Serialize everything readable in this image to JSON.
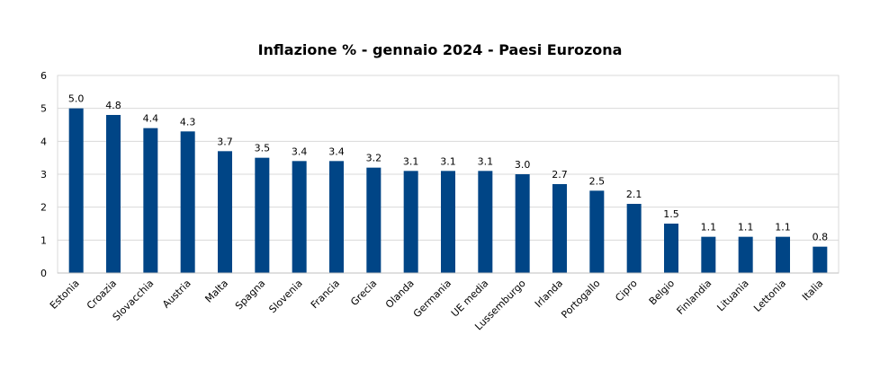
{
  "chart_data": {
    "type": "bar",
    "title": "Inflazione % - gennaio 2024 - Paesi Eurozona",
    "xlabel": "",
    "ylabel": "",
    "ylim": [
      0,
      6
    ],
    "yticks": [
      0,
      1,
      2,
      3,
      4,
      5,
      6
    ],
    "grid": true,
    "legend": "none",
    "bar_color": "#004586",
    "grid_color": "#d9d9d9",
    "categories": [
      "Estonia",
      "Croazia",
      "Slovacchia",
      "Austria",
      "Malta",
      "Spagna",
      "Slovenia",
      "Francia",
      "Grecia",
      "Olanda",
      "Germania",
      "UE media",
      "Lussemburgo",
      "Irlanda",
      "Portogallo",
      "Cipro",
      "Belgio",
      "Finlandia",
      "Lituania",
      "Lettonia",
      "Italia"
    ],
    "values": [
      5.0,
      4.8,
      4.4,
      4.3,
      3.7,
      3.5,
      3.4,
      3.4,
      3.2,
      3.1,
      3.1,
      3.1,
      3.0,
      2.7,
      2.5,
      2.1,
      1.5,
      1.1,
      1.1,
      1.1,
      0.8
    ],
    "data_labels": [
      "5.0",
      "4.8",
      "4.4",
      "4.3",
      "3.7",
      "3.5",
      "3.4",
      "3.4",
      "3.2",
      "3.1",
      "3.1",
      "3.1",
      "3.0",
      "2.7",
      "2.5",
      "2.1",
      "1.5",
      "1.1",
      "1.1",
      "1.1",
      "0.8"
    ]
  }
}
